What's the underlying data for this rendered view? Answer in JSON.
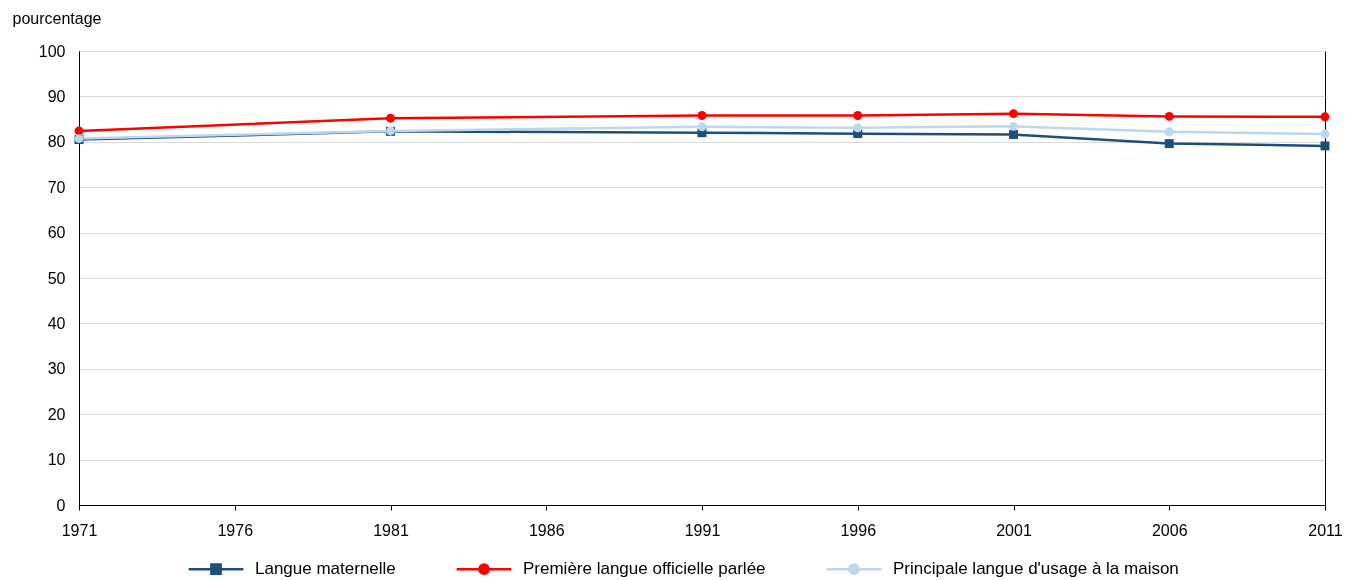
{
  "chart_data": {
    "type": "line",
    "ylabel": "pourcentage",
    "x": [
      1971,
      1981,
      1991,
      1996,
      2001,
      2006,
      2011
    ],
    "xlim": [
      1971,
      2011
    ],
    "xticks": [
      1971,
      1976,
      1981,
      1986,
      1991,
      1996,
      2001,
      2006,
      2011
    ],
    "ylim": [
      0,
      100
    ],
    "yticks": [
      0,
      10,
      20,
      30,
      40,
      50,
      60,
      70,
      80,
      90,
      100
    ],
    "grid": "y",
    "legend": "bottom",
    "series": [
      {
        "name": "Langue maternelle",
        "color": "#1f4e79",
        "marker": "square",
        "values": [
          80.5,
          82.3,
          82.0,
          81.8,
          81.6,
          79.6,
          79.1
        ]
      },
      {
        "name": "Première langue officielle parlée",
        "color": "#ff0000",
        "marker": "circle",
        "values": [
          82.4,
          85.2,
          85.8,
          85.8,
          86.2,
          85.6,
          85.5
        ]
      },
      {
        "name": "Principale langue d'usage à la maison",
        "color": "#bdd7ee",
        "marker": "circle",
        "values": [
          80.7,
          82.4,
          83.3,
          83.1,
          83.4,
          82.2,
          81.7
        ]
      }
    ]
  }
}
